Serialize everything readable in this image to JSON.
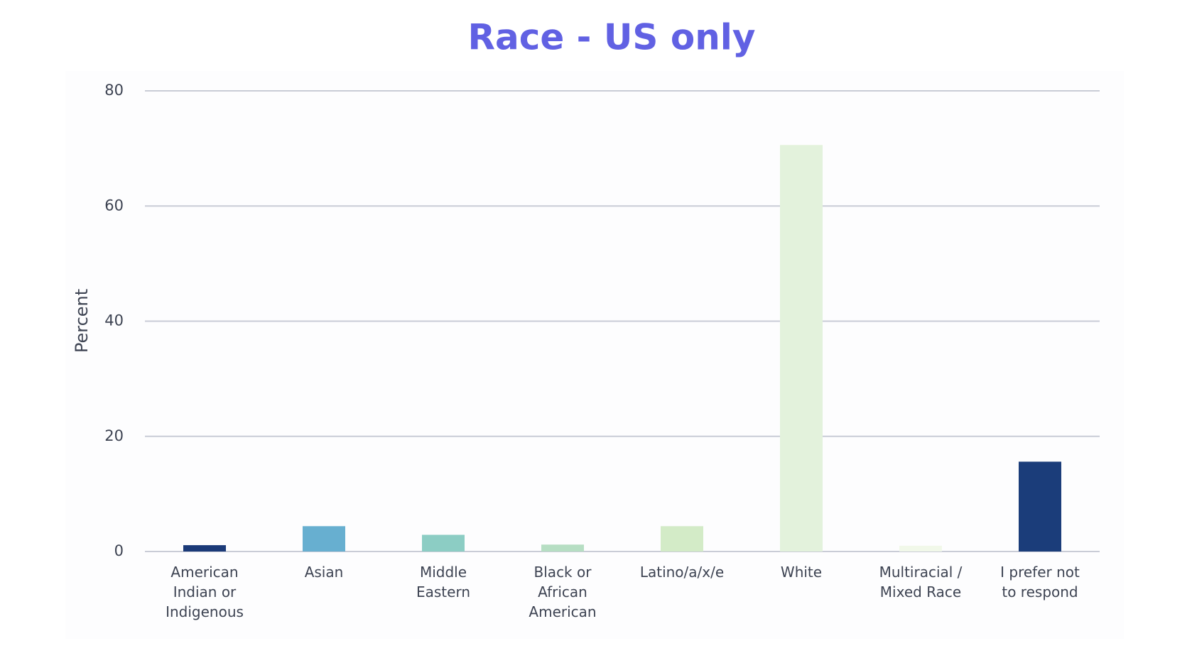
{
  "chart_data": {
    "type": "bar",
    "title": "Race - US only",
    "y_label": "Percent",
    "categories": [
      "American Indian or Indigenous",
      "Asian",
      "Middle Eastern",
      "Black or African American",
      "Latino/a/x/e",
      "White",
      "Multiracial / Mixed Race",
      "I prefer not to respond"
    ],
    "values": [
      1.1,
      4.4,
      2.9,
      1.2,
      4.4,
      70.6,
      1.0,
      15.6
    ],
    "colors": [
      "#1b3a78",
      "#67afd0",
      "#8ccdc4",
      "#b6dec3",
      "#d3ebc7",
      "#e3f2dc",
      "#f1f8e9",
      "#1b3d7a"
    ],
    "ylim": [
      0,
      80
    ],
    "yticks": [
      0,
      20,
      40,
      60,
      80
    ],
    "grid": true
  }
}
